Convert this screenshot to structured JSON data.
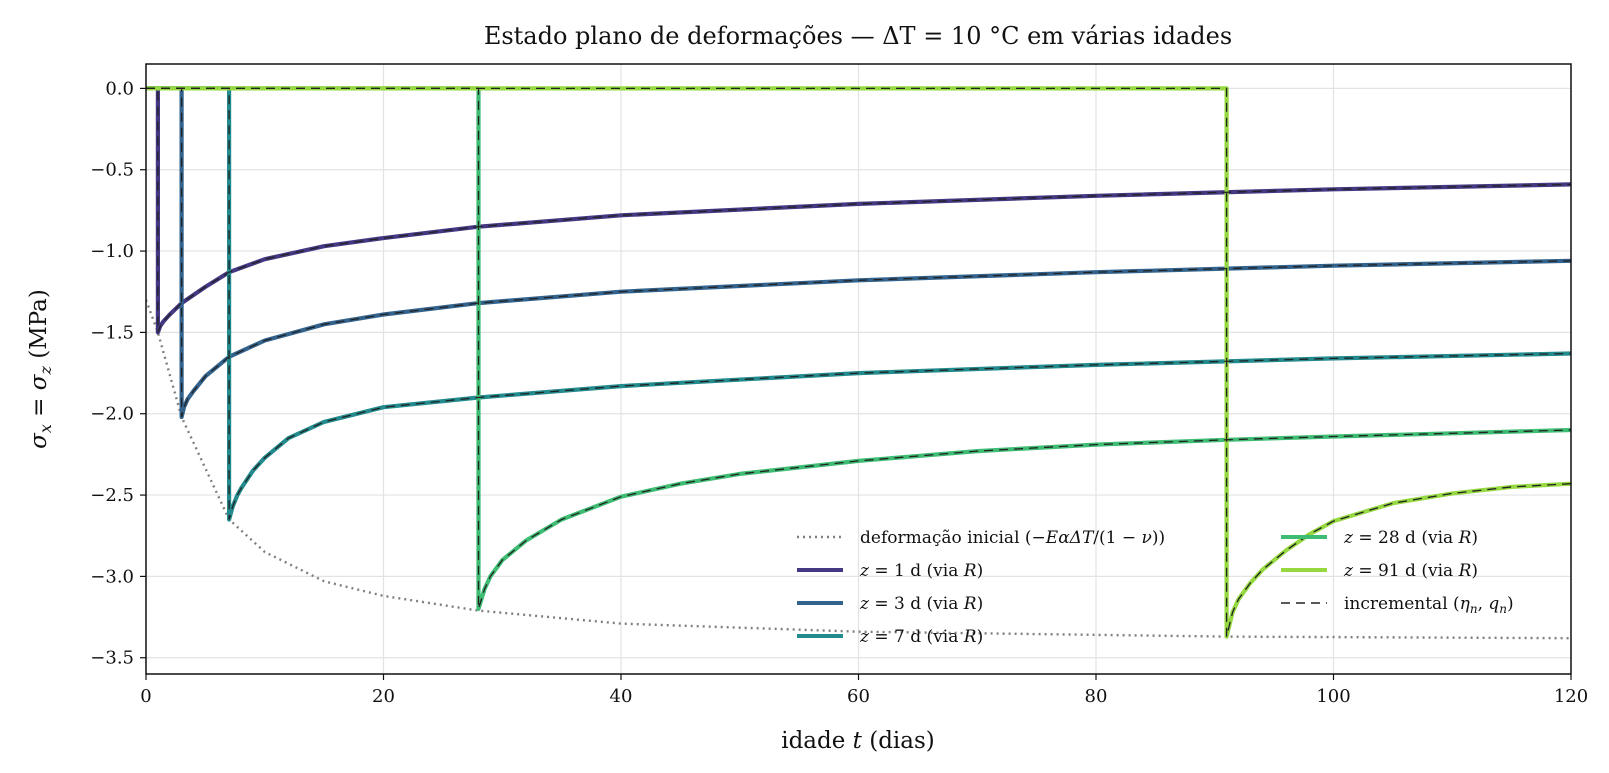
{
  "chart_data": {
    "type": "line",
    "title": "Estado plano de deformações — ΔT = 10 °C em várias idades",
    "xlabel": "idade t (dias)",
    "ylabel": "σx = σz (MPa)",
    "xlim": [
      0,
      120
    ],
    "ylim": [
      -3.6,
      0.15
    ],
    "xticks": [
      0,
      20,
      40,
      60,
      80,
      100,
      120
    ],
    "yticks": [
      0.0,
      -0.5,
      -1.0,
      -1.5,
      -2.0,
      -2.5,
      -3.0,
      -3.5
    ],
    "xtick_labels": [
      "0",
      "20",
      "40",
      "60",
      "80",
      "100",
      "120"
    ],
    "ytick_labels": [
      "0.0",
      "−0.5",
      "−1.0",
      "−1.5",
      "−2.0",
      "−2.5",
      "−3.0",
      "−3.5"
    ],
    "grid": true,
    "legend_position": "lower-right",
    "initial_stress_curve": {
      "name": "deformação inicial (−EαΔT/(1 − ν))",
      "color": "#7f7f7f",
      "style": "dotted",
      "x": [
        0,
        1,
        3,
        7,
        10,
        15,
        20,
        28,
        40,
        60,
        91,
        120
      ],
      "y": [
        -1.3,
        -1.5,
        -2.02,
        -2.65,
        -2.85,
        -3.03,
        -3.12,
        -3.21,
        -3.29,
        -3.34,
        -3.37,
        -3.38
      ]
    },
    "series": [
      {
        "name": "z = 1 d (via R)",
        "color": "#453781",
        "z": 1,
        "x": [
          1,
          1.2,
          1.5,
          2,
          3,
          5,
          7,
          10,
          15,
          20,
          28,
          40,
          60,
          80,
          100,
          120
        ],
        "y": [
          -1.5,
          -1.46,
          -1.43,
          -1.39,
          -1.32,
          -1.22,
          -1.13,
          -1.05,
          -0.97,
          -0.92,
          -0.85,
          -0.78,
          -0.71,
          -0.66,
          -0.62,
          -0.59
        ]
      },
      {
        "name": "z = 3 d (via R)",
        "color": "#33638d",
        "z": 3,
        "x": [
          3,
          3.2,
          3.5,
          4,
          5,
          7,
          10,
          15,
          20,
          28,
          40,
          60,
          80,
          100,
          120
        ],
        "y": [
          -2.02,
          -1.96,
          -1.91,
          -1.86,
          -1.77,
          -1.65,
          -1.55,
          -1.45,
          -1.39,
          -1.32,
          -1.25,
          -1.18,
          -1.13,
          -1.09,
          -1.06
        ]
      },
      {
        "name": "z = 7 d (via R)",
        "color": "#238a8d",
        "z": 7,
        "x": [
          7,
          7.3,
          7.7,
          8,
          9,
          10,
          12,
          15,
          20,
          28,
          40,
          60,
          80,
          100,
          120
        ],
        "y": [
          -2.65,
          -2.57,
          -2.5,
          -2.46,
          -2.35,
          -2.27,
          -2.15,
          -2.05,
          -1.96,
          -1.9,
          -1.83,
          -1.75,
          -1.7,
          -1.66,
          -1.63
        ]
      },
      {
        "name": "z = 28 d (via R)",
        "color": "#3fbc73",
        "z": 28,
        "x": [
          28,
          28.5,
          29,
          30,
          32,
          35,
          40,
          45,
          50,
          60,
          70,
          80,
          91,
          100,
          110,
          120
        ],
        "y": [
          -3.2,
          -3.08,
          -3.0,
          -2.9,
          -2.78,
          -2.65,
          -2.51,
          -2.43,
          -2.37,
          -2.29,
          -2.23,
          -2.19,
          -2.16,
          -2.14,
          -2.12,
          -2.1
        ]
      },
      {
        "name": "z = 91 d (via R)",
        "color": "#95d840",
        "z": 91,
        "x": [
          91,
          91.5,
          92,
          93,
          94,
          96,
          98,
          100,
          105,
          110,
          115,
          120
        ],
        "y": [
          -3.37,
          -3.22,
          -3.14,
          -3.04,
          -2.96,
          -2.84,
          -2.74,
          -2.66,
          -2.55,
          -2.49,
          -2.45,
          -2.43
        ]
      }
    ],
    "incremental_legend": "incremental (ηn, qn)",
    "incremental_color": "#222222"
  }
}
